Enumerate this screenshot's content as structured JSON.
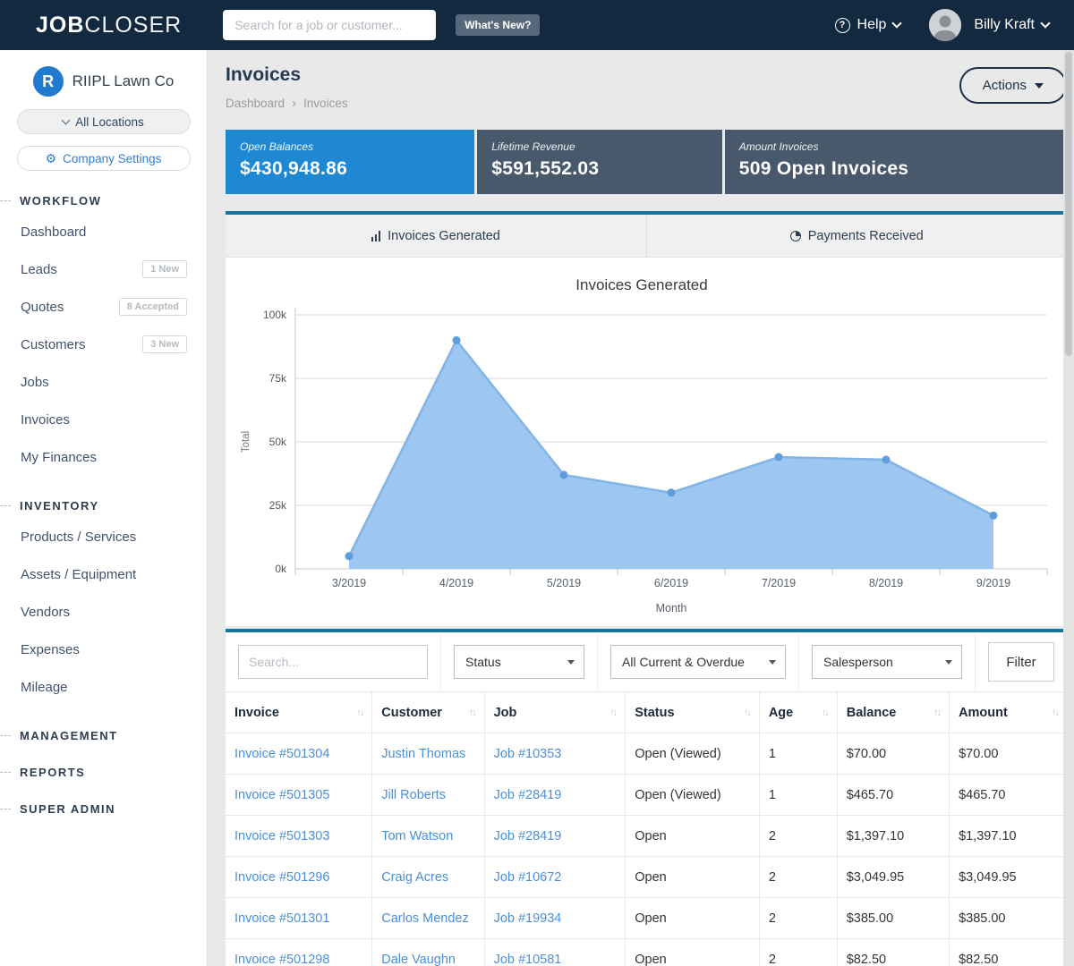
{
  "header": {
    "logo_bold": "JOB",
    "logo_light": "CLOSER",
    "search_placeholder": "Search for a job or customer...",
    "whats_new_label": "What's New?",
    "help_label": "Help",
    "user_name": "Billy Kraft"
  },
  "sidebar": {
    "company_initial": "R",
    "company_name": "RIIPL Lawn Co",
    "locations_label": "All Locations",
    "settings_label": "Company Settings",
    "sections": [
      {
        "label": "WORKFLOW",
        "items": [
          {
            "label": "Dashboard"
          },
          {
            "label": "Leads",
            "badge": "1 New"
          },
          {
            "label": "Quotes",
            "badge": "8 Accepted"
          },
          {
            "label": "Customers",
            "badge": "3 New"
          },
          {
            "label": "Jobs"
          },
          {
            "label": "Invoices"
          },
          {
            "label": "My Finances"
          }
        ]
      },
      {
        "label": "INVENTORY",
        "items": [
          {
            "label": "Products / Services"
          },
          {
            "label": "Assets / Equipment"
          },
          {
            "label": "Vendors"
          },
          {
            "label": "Expenses"
          },
          {
            "label": "Mileage"
          }
        ]
      },
      {
        "label": "MANAGEMENT",
        "items": []
      },
      {
        "label": "REPORTS",
        "items": []
      },
      {
        "label": "SUPER ADMIN",
        "items": []
      }
    ]
  },
  "page": {
    "title": "Invoices",
    "breadcrumb_1": "Dashboard",
    "breadcrumb_2": "Invoices",
    "actions_label": "Actions"
  },
  "stats": [
    {
      "label": "Open Balances",
      "value": "$430,948.86",
      "color": "#1e88d2"
    },
    {
      "label": "Lifetime Revenue",
      "value": "$591,552.03",
      "color": "#47596b"
    },
    {
      "label": "Amount Invoices",
      "value": "509 Open Invoices",
      "color": "#47596b"
    }
  ],
  "tabs": [
    {
      "label": "Invoices Generated",
      "icon": "bar-chart-icon"
    },
    {
      "label": "Payments Received",
      "icon": "pie-clock-icon"
    }
  ],
  "chart_data": {
    "type": "area",
    "title": "Invoices Generated",
    "x": [
      "3/2019",
      "4/2019",
      "5/2019",
      "6/2019",
      "7/2019",
      "8/2019",
      "9/2019"
    ],
    "values": [
      5000,
      90000,
      37000,
      30000,
      44000,
      43000,
      21000
    ],
    "xlabel": "Month",
    "ylabel": "Total",
    "ylim": [
      0,
      100000
    ],
    "ytick_values": [
      0,
      25000,
      50000,
      75000,
      100000
    ],
    "ytick_labels": [
      "0k",
      "25k",
      "50k",
      "75k",
      "100k"
    ],
    "grid": true,
    "legend": "none",
    "fill_color": "#9dc6f0",
    "line_color": "#82b4e8",
    "dot_color": "#5f9edc"
  },
  "filters": {
    "search_placeholder": "Search...",
    "status_value": "Status",
    "range_value": "All Current & Overdue",
    "salesperson_value": "Salesperson",
    "filter_button_label": "Filter"
  },
  "table": {
    "columns": [
      "Invoice",
      "Customer",
      "Job",
      "Status",
      "Age",
      "Balance",
      "Amount"
    ],
    "rows": [
      {
        "invoice": "Invoice #501304",
        "customer": "Justin Thomas",
        "job": "Job #10353",
        "status": "Open (Viewed)",
        "age": "1",
        "balance": "$70.00",
        "amount": "$70.00"
      },
      {
        "invoice": "Invoice #501305",
        "customer": "Jill Roberts",
        "job": "Job #28419",
        "status": "Open (Viewed)",
        "age": "1",
        "balance": "$465.70",
        "amount": "$465.70"
      },
      {
        "invoice": "Invoice #501303",
        "customer": "Tom Watson",
        "job": "Job #28419",
        "status": "Open",
        "age": "2",
        "balance": "$1,397.10",
        "amount": "$1,397.10"
      },
      {
        "invoice": "Invoice #501296",
        "customer": "Craig Acres",
        "job": "Job #10672",
        "status": "Open",
        "age": "2",
        "balance": "$3,049.95",
        "amount": "$3,049.95"
      },
      {
        "invoice": "Invoice #501301",
        "customer": "Carlos Mendez",
        "job": "Job #19934",
        "status": "Open",
        "age": "2",
        "balance": "$385.00",
        "amount": "$385.00"
      },
      {
        "invoice": "Invoice #501298",
        "customer": "Dale Vaughn",
        "job": "Job #10581",
        "status": "Open",
        "age": "2",
        "balance": "$82.50",
        "amount": "$82.50"
      }
    ]
  },
  "colors": {
    "header_navy": "#122940",
    "accent_teal": "#13749c",
    "link_blue": "#4a90d9",
    "stat_blue": "#1e88d2",
    "stat_slate": "#47596b"
  }
}
